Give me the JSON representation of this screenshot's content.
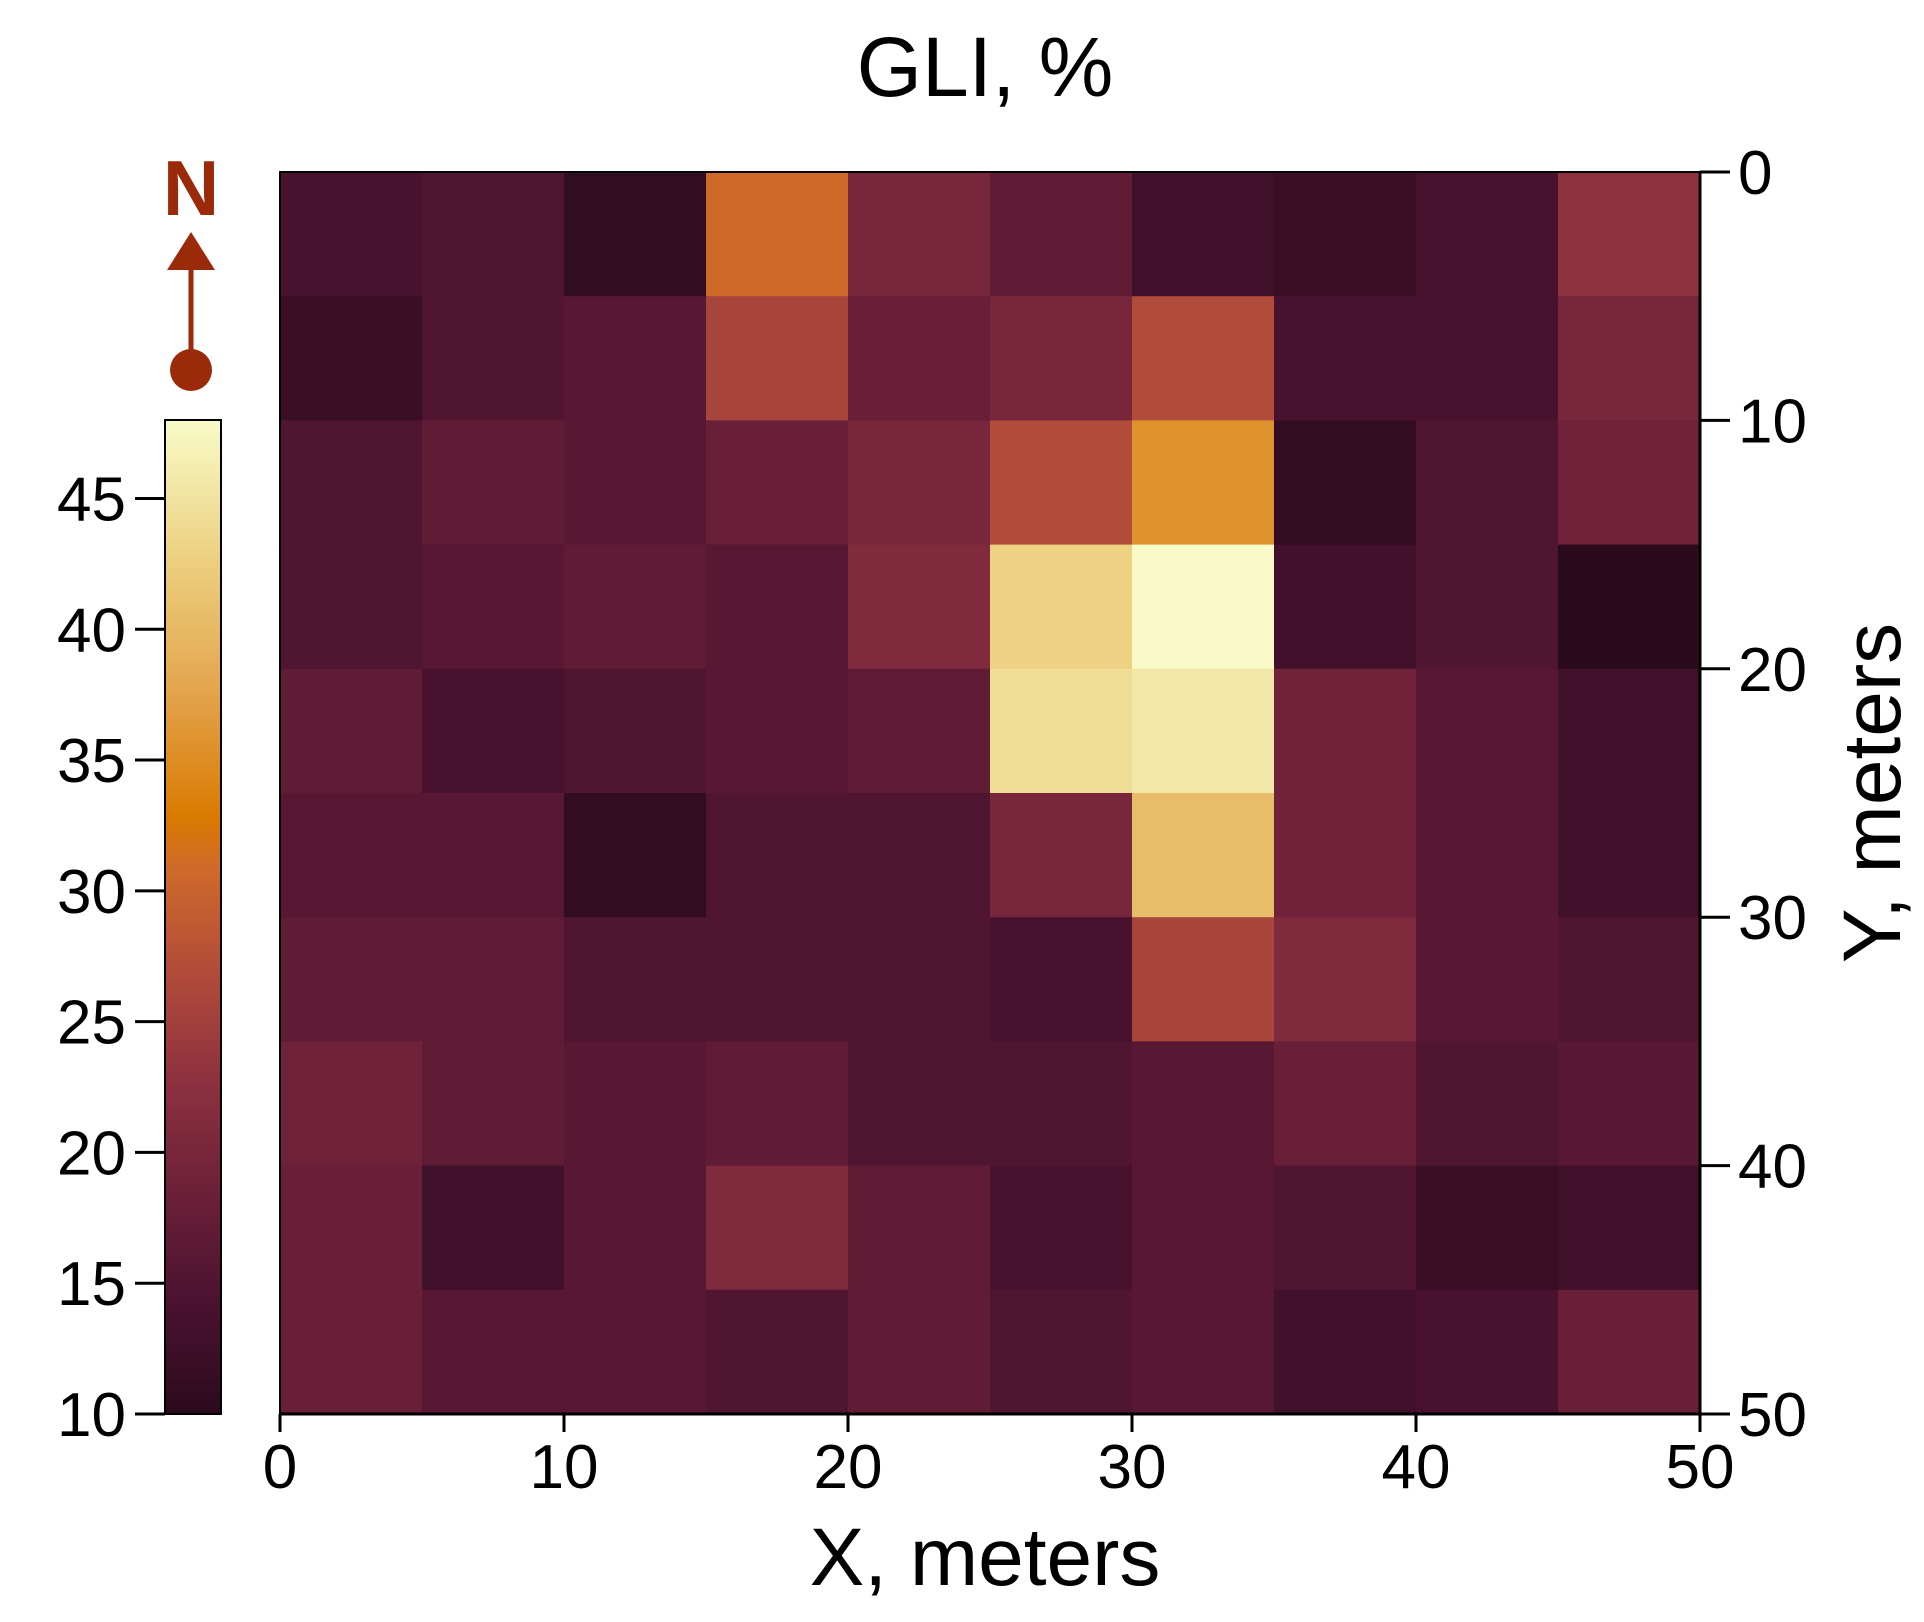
{
  "chart_data": {
    "type": "heatmap",
    "title": "GLI, %",
    "xlabel": "X, meters",
    "ylabel": "Y, meters",
    "xlim": [
      0,
      50
    ],
    "ylim": [
      0,
      50
    ],
    "y_axis_inverted": true,
    "y_axis_side": "right",
    "cell_size": 5,
    "x_ticks": [
      "0",
      "10",
      "20",
      "30",
      "40",
      "50"
    ],
    "y_ticks": [
      "0",
      "10",
      "20",
      "30",
      "40",
      "50"
    ],
    "colorbar": {
      "min": 10,
      "max": 48,
      "ticks": [
        "10",
        "15",
        "20",
        "25",
        "30",
        "35",
        "40",
        "45"
      ],
      "placement": "left",
      "colors": [
        "#2b0a1c",
        "#4a1230",
        "#6b2038",
        "#8c3040",
        "#b04a3a",
        "#d06a2a",
        "#d97a00",
        "#e3a24a",
        "#ecd080",
        "#f8fbc8"
      ]
    },
    "north_arrow": {
      "label": "N"
    },
    "values": [
      [
        14,
        15,
        11,
        31,
        20,
        17,
        13,
        12,
        14,
        23
      ],
      [
        12,
        15,
        16,
        26,
        18,
        20,
        27,
        14,
        14,
        20
      ],
      [
        15,
        17,
        16,
        18,
        20,
        27,
        38,
        11,
        15,
        19
      ],
      [
        15,
        16,
        17,
        16,
        21,
        44,
        48,
        13,
        15,
        10
      ],
      [
        17,
        14,
        15,
        16,
        17,
        45,
        46,
        19,
        16,
        13
      ],
      [
        16,
        16,
        11,
        15,
        15,
        20,
        42,
        19,
        16,
        13
      ],
      [
        17,
        17,
        15,
        15,
        15,
        14,
        26,
        21,
        16,
        15
      ],
      [
        19,
        17,
        16,
        17,
        15,
        15,
        16,
        18,
        15,
        16
      ],
      [
        18,
        13,
        16,
        21,
        17,
        14,
        16,
        15,
        12,
        13
      ],
      [
        18,
        16,
        16,
        15,
        17,
        15,
        16,
        13,
        14,
        18
      ]
    ]
  }
}
